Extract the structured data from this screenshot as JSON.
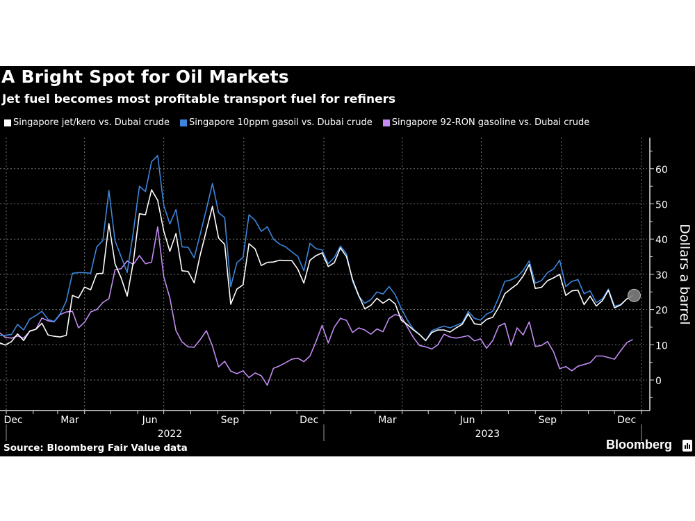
{
  "header": {
    "title": "A Bright Spot for Oil Markets",
    "subtitle": "Jet fuel becomes most profitable transport fuel for refiners"
  },
  "footer": {
    "source": "Source: Bloomberg Fair Value data",
    "brand": "Bloomberg"
  },
  "chart_data": {
    "type": "line",
    "title": "A Bright Spot for Oil Markets",
    "subtitle": "Jet fuel becomes most profitable transport fuel for refiners",
    "ylabel": "Dollars a barrel",
    "xlabel": "",
    "ylim": [
      -8.7,
      68.8
    ],
    "y_ticks": [
      0,
      10,
      20,
      30,
      40,
      50,
      60
    ],
    "y_axis_position": "right",
    "grid": true,
    "legend_position": "top",
    "x_tick_labels": [
      {
        "label": "Dec",
        "month": "2021-12"
      },
      {
        "label": "Mar",
        "month": "2022-03"
      },
      {
        "label": "Jun",
        "month": "2022-06"
      },
      {
        "label": "Sep",
        "month": "2022-09"
      },
      {
        "label": "Dec",
        "month": "2022-12"
      },
      {
        "label": "Mar",
        "month": "2023-03"
      },
      {
        "label": "Jun",
        "month": "2023-06"
      },
      {
        "label": "Sep",
        "month": "2023-09"
      },
      {
        "label": "Dec",
        "month": "2023-12"
      }
    ],
    "year_labels": [
      "2022",
      "2023"
    ],
    "x": [
      "2021-12-24",
      "2021-12-31",
      "2022-01-07",
      "2022-01-14",
      "2022-01-21",
      "2022-01-28",
      "2022-02-04",
      "2022-02-11",
      "2022-02-18",
      "2022-02-25",
      "2022-03-04",
      "2022-03-11",
      "2022-03-18",
      "2022-03-25",
      "2022-04-01",
      "2022-04-08",
      "2022-04-15",
      "2022-04-22",
      "2022-04-29",
      "2022-05-06",
      "2022-05-13",
      "2022-05-20",
      "2022-05-27",
      "2022-06-03",
      "2022-06-10",
      "2022-06-17",
      "2022-06-24",
      "2022-07-01",
      "2022-07-08",
      "2022-07-15",
      "2022-07-22",
      "2022-07-29",
      "2022-08-05",
      "2022-08-12",
      "2022-08-19",
      "2022-08-26",
      "2022-09-02",
      "2022-09-09",
      "2022-09-16",
      "2022-09-23",
      "2022-09-30",
      "2022-10-07",
      "2022-10-14",
      "2022-10-21",
      "2022-10-28",
      "2022-11-04",
      "2022-11-11",
      "2022-11-18",
      "2022-11-25",
      "2022-12-02",
      "2022-12-09",
      "2022-12-16",
      "2022-12-23",
      "2022-12-30",
      "2023-01-06",
      "2023-01-13",
      "2023-01-20",
      "2023-01-27",
      "2023-02-03",
      "2023-02-10",
      "2023-02-17",
      "2023-02-24",
      "2023-03-03",
      "2023-03-10",
      "2023-03-17",
      "2023-03-24",
      "2023-03-31",
      "2023-04-07",
      "2023-04-14",
      "2023-04-21",
      "2023-04-28",
      "2023-05-05",
      "2023-05-12",
      "2023-05-19",
      "2023-05-26",
      "2023-06-02",
      "2023-06-09",
      "2023-06-16",
      "2023-06-23",
      "2023-06-30",
      "2023-07-07",
      "2023-07-14",
      "2023-07-21",
      "2023-07-28",
      "2023-08-04",
      "2023-08-11",
      "2023-08-18",
      "2023-08-25",
      "2023-09-01",
      "2023-09-08",
      "2023-09-15",
      "2023-09-22",
      "2023-09-29",
      "2023-10-06",
      "2023-10-13",
      "2023-10-20",
      "2023-10-27",
      "2023-11-03",
      "2023-11-10",
      "2023-11-17",
      "2023-11-24",
      "2023-12-01",
      "2023-12-08",
      "2023-12-15",
      "2023-12-22"
    ],
    "series": [
      {
        "name": "Singapore jet/kero vs. Dubai crude",
        "color": "#ffffff",
        "values": [
          10.6,
          9.9,
          10.9,
          13.1,
          11.2,
          13.9,
          14.4,
          16.1,
          12.8,
          12.4,
          12.2,
          12.7,
          24.0,
          23.3,
          26.4,
          25.6,
          30.2,
          30.3,
          44.4,
          33.0,
          29.0,
          23.8,
          33.5,
          47.2,
          46.9,
          54.0,
          51.0,
          42.3,
          36.5,
          41.6,
          31.0,
          30.8,
          27.6,
          35.6,
          42.5,
          49.3,
          40.3,
          38.5,
          21.5,
          25.8,
          27.0,
          38.7,
          37.2,
          32.5,
          33.4,
          33.5,
          34.0,
          33.9,
          33.9,
          31.5,
          27.5,
          34.0,
          35.3,
          36.1,
          32.2,
          33.3,
          37.5,
          35.0,
          28.5,
          24.0,
          20.2,
          21.2,
          23.2,
          21.8,
          23.0,
          21.6,
          17.0,
          15.7,
          14.2,
          12.9,
          11.2,
          13.5,
          14.2,
          14.2,
          13.6,
          14.8,
          15.8,
          18.8,
          16.0,
          15.7,
          17.2,
          17.8,
          20.7,
          24.5,
          25.9,
          27.2,
          29.5,
          32.8,
          26.0,
          26.3,
          28.2,
          29.0,
          30.0,
          24.0,
          25.3,
          25.5,
          21.4,
          23.8,
          21.0,
          22.5,
          25.5,
          20.5,
          21.3,
          23.0,
          24.0
        ]
      },
      {
        "name": "Singapore 10ppm gasoil vs. Dubai crude",
        "color": "#3d86dc",
        "values": [
          12.6,
          12.7,
          12.9,
          15.8,
          14.2,
          17.3,
          18.3,
          19.5,
          17.2,
          16.6,
          18.8,
          22.4,
          30.3,
          30.5,
          30.5,
          30.3,
          37.8,
          39.6,
          53.8,
          39.5,
          35.0,
          30.5,
          42.0,
          55.0,
          53.5,
          62.0,
          63.7,
          49.6,
          44.3,
          48.4,
          37.8,
          37.7,
          34.7,
          41.5,
          48.5,
          55.8,
          47.5,
          46.1,
          26.5,
          33.3,
          34.8,
          46.9,
          45.3,
          42.2,
          43.5,
          40.0,
          38.6,
          37.8,
          36.4,
          35.1,
          31.0,
          38.8,
          37.3,
          36.9,
          33.0,
          34.8,
          38.0,
          35.8,
          28.0,
          23.8,
          21.8,
          22.8,
          25.0,
          24.4,
          26.5,
          24.2,
          20.3,
          17.0,
          14.4,
          12.9,
          11.1,
          14.0,
          14.7,
          15.3,
          14.8,
          15.5,
          16.2,
          19.5,
          17.5,
          17.0,
          18.7,
          19.5,
          23.5,
          28.0,
          28.4,
          29.3,
          31.1,
          33.8,
          27.5,
          28.2,
          30.5,
          31.5,
          34.0,
          26.5,
          28.0,
          28.5,
          24.5,
          25.3,
          22.0,
          23.0,
          25.8,
          21.0,
          21.4,
          23.0,
          23.9
        ]
      },
      {
        "name": "Singapore 92-RON gasoline vs. Dubai crude",
        "color": "#c28cf2",
        "values": [
          13.5,
          12.1,
          11.9,
          12.5,
          11.9,
          13.8,
          14.4,
          17.6,
          16.8,
          16.5,
          18.6,
          19.3,
          19.5,
          14.8,
          16.4,
          19.3,
          20.0,
          22.0,
          23.1,
          31.3,
          31.6,
          33.8,
          32.8,
          35.3,
          33.0,
          33.5,
          43.5,
          29.3,
          23.3,
          14.0,
          10.8,
          9.4,
          9.3,
          11.5,
          14.0,
          9.6,
          3.7,
          5.3,
          2.5,
          1.8,
          2.6,
          0.7,
          2.0,
          1.2,
          -1.5,
          3.3,
          4.0,
          4.9,
          5.9,
          6.2,
          5.2,
          6.8,
          10.9,
          15.5,
          10.5,
          15.0,
          17.5,
          16.9,
          13.5,
          14.8,
          14.2,
          13.0,
          14.5,
          13.7,
          17.5,
          18.6,
          18.0,
          15.0,
          12.0,
          9.8,
          9.4,
          8.8,
          10.0,
          13.0,
          12.2,
          11.9,
          12.2,
          12.6,
          11.1,
          11.7,
          9.0,
          11.2,
          15.3,
          16.1,
          9.8,
          14.8,
          12.8,
          16.5,
          9.5,
          9.8,
          10.9,
          8.0,
          3.2,
          3.8,
          2.6,
          3.9,
          4.4,
          4.9,
          6.8,
          6.8,
          6.4,
          5.9,
          8.3,
          10.6,
          11.5
        ]
      }
    ],
    "last_value_marker": {
      "series": "Singapore jet/kero vs. Dubai crude",
      "color": "#808080"
    }
  }
}
